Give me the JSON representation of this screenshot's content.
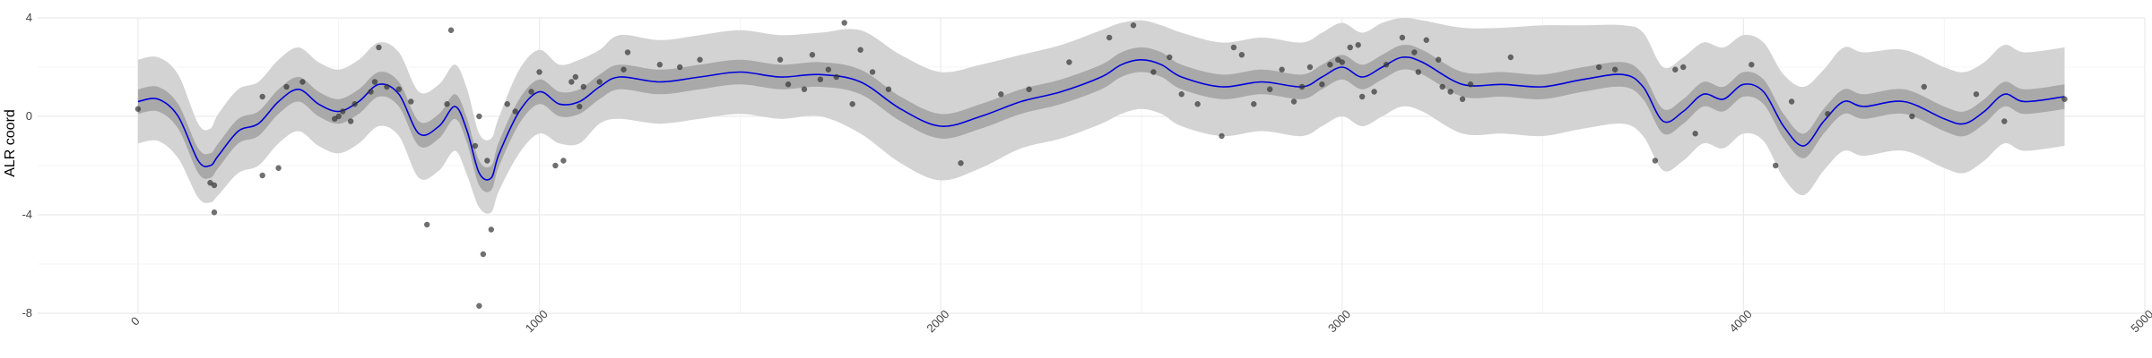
{
  "chart_data": {
    "type": "line",
    "title": "",
    "xlabel": "",
    "ylabel": "ALR coord",
    "xlim": [
      -250,
      5000
    ],
    "ylim": [
      -8,
      4
    ],
    "x_ticks": [
      0,
      1000,
      2000,
      3000,
      4000,
      5000
    ],
    "y_ticks": [
      -8,
      -4,
      0,
      4
    ],
    "grid": true,
    "legend": "none",
    "colors": {
      "mean_line": "#0000dd",
      "inner_band": "#a9a9a9",
      "outer_band": "#d3d3d3",
      "points": "#333333",
      "grid": "#ebebeb"
    },
    "curve": {
      "x": [
        0,
        50,
        100,
        150,
        180,
        200,
        250,
        300,
        350,
        400,
        450,
        500,
        550,
        600,
        650,
        700,
        750,
        790,
        820,
        850,
        880,
        900,
        950,
        1000,
        1050,
        1100,
        1150,
        1200,
        1300,
        1400,
        1500,
        1600,
        1700,
        1800,
        1900,
        2000,
        2100,
        2200,
        2300,
        2400,
        2450,
        2500,
        2550,
        2600,
        2700,
        2800,
        2900,
        2950,
        3000,
        3050,
        3100,
        3150,
        3200,
        3300,
        3400,
        3500,
        3600,
        3700,
        3750,
        3800,
        3850,
        3900,
        3950,
        4000,
        4050,
        4100,
        4150,
        4200,
        4250,
        4300,
        4400,
        4500,
        4550,
        4600,
        4650,
        4700,
        4800
      ],
      "mean": [
        0.6,
        0.7,
        0.0,
        -1.8,
        -2.0,
        -1.6,
        -0.6,
        -0.3,
        0.6,
        1.1,
        0.5,
        0.2,
        0.6,
        1.3,
        0.9,
        -0.7,
        -0.4,
        0.4,
        -0.6,
        -2.3,
        -2.5,
        -1.5,
        0.2,
        1.0,
        0.5,
        0.6,
        1.2,
        1.6,
        1.4,
        1.6,
        1.8,
        1.6,
        1.7,
        1.4,
        0.3,
        -0.4,
        0.0,
        0.6,
        1.0,
        1.6,
        2.1,
        2.3,
        2.1,
        1.6,
        1.2,
        1.4,
        1.2,
        1.6,
        2.0,
        1.6,
        2.0,
        2.4,
        2.2,
        1.3,
        1.3,
        1.2,
        1.5,
        1.7,
        1.2,
        -0.2,
        0.2,
        0.9,
        0.7,
        1.3,
        1.0,
        -0.4,
        -1.2,
        -0.2,
        0.6,
        0.4,
        0.6,
        -0.1,
        -0.3,
        0.2,
        0.9,
        0.6,
        0.8
      ],
      "lower_inner": [
        0.1,
        0.2,
        -0.5,
        -2.3,
        -2.5,
        -2.1,
        -1.1,
        -0.8,
        0.1,
        0.6,
        0.0,
        -0.3,
        0.1,
        0.8,
        0.4,
        -1.2,
        -0.9,
        -0.1,
        -1.1,
        -2.8,
        -3.0,
        -2.0,
        -0.3,
        0.5,
        0.0,
        0.1,
        0.7,
        1.1,
        0.9,
        1.1,
        1.3,
        1.1,
        1.2,
        0.9,
        -0.2,
        -0.9,
        -0.5,
        0.1,
        0.5,
        1.1,
        1.6,
        1.8,
        1.6,
        1.1,
        0.7,
        0.9,
        0.7,
        1.1,
        1.5,
        1.1,
        1.5,
        1.9,
        1.7,
        0.8,
        0.8,
        0.7,
        1.0,
        1.2,
        0.7,
        -0.7,
        -0.3,
        0.4,
        0.2,
        0.8,
        0.5,
        -0.9,
        -1.7,
        -0.7,
        0.1,
        -0.1,
        0.1,
        -0.6,
        -0.8,
        -0.3,
        0.4,
        0.1,
        0.3
      ],
      "upper_inner": [
        1.1,
        1.2,
        0.5,
        -1.3,
        -1.5,
        -1.1,
        -0.1,
        0.2,
        1.1,
        1.6,
        1.0,
        0.7,
        1.1,
        1.8,
        1.4,
        -0.2,
        0.1,
        0.9,
        -0.1,
        -1.8,
        -2.0,
        -1.0,
        0.7,
        1.5,
        1.0,
        1.1,
        1.7,
        2.1,
        1.9,
        2.1,
        2.3,
        2.1,
        2.2,
        1.9,
        0.8,
        0.1,
        0.5,
        1.1,
        1.5,
        2.1,
        2.6,
        2.8,
        2.6,
        2.1,
        1.7,
        1.9,
        1.7,
        2.1,
        2.5,
        2.1,
        2.5,
        2.9,
        2.7,
        1.8,
        1.8,
        1.7,
        2.0,
        2.2,
        1.7,
        0.3,
        0.7,
        1.4,
        1.2,
        1.8,
        1.5,
        0.1,
        -0.7,
        0.3,
        1.1,
        0.9,
        1.1,
        0.4,
        0.2,
        0.7,
        1.4,
        1.1,
        1.3
      ],
      "lower_outer": [
        -1.1,
        -1.0,
        -1.7,
        -3.3,
        -3.5,
        -3.2,
        -2.3,
        -2.0,
        -1.1,
        -0.6,
        -1.2,
        -1.5,
        -1.1,
        -0.4,
        -0.8,
        -2.5,
        -2.2,
        -1.4,
        -2.4,
        -3.7,
        -3.9,
        -3.0,
        -1.5,
        -0.7,
        -1.1,
        -1.1,
        -0.3,
        -0.1,
        -0.3,
        -0.1,
        0.1,
        -0.1,
        0.0,
        -0.7,
        -1.9,
        -2.6,
        -2.1,
        -1.3,
        -0.9,
        -0.3,
        0.1,
        0.3,
        0.1,
        -0.4,
        -0.8,
        -0.6,
        -0.8,
        -0.4,
        0.0,
        -0.4,
        0.0,
        0.4,
        0.2,
        -0.7,
        -0.7,
        -0.8,
        -0.5,
        -0.3,
        -0.8,
        -2.2,
        -1.8,
        -1.1,
        -1.3,
        -0.7,
        -1.0,
        -2.5,
        -3.2,
        -2.2,
        -1.4,
        -1.6,
        -1.4,
        -2.1,
        -2.3,
        -1.8,
        -1.1,
        -1.4,
        -1.2
      ],
      "upper_outer": [
        2.3,
        2.4,
        1.7,
        -0.3,
        -0.5,
        0.1,
        1.1,
        1.4,
        2.3,
        2.8,
        2.2,
        1.9,
        2.3,
        3.0,
        2.6,
        1.0,
        1.3,
        2.1,
        1.1,
        -0.7,
        -0.9,
        0.0,
        1.9,
        2.7,
        2.1,
        2.3,
        2.7,
        3.3,
        3.1,
        3.3,
        3.5,
        3.3,
        3.4,
        3.5,
        2.5,
        1.8,
        2.1,
        2.5,
        2.9,
        3.5,
        3.8,
        3.9,
        3.7,
        3.4,
        3.0,
        3.2,
        3.0,
        3.4,
        3.8,
        3.4,
        3.8,
        4.0,
        3.9,
        3.6,
        3.6,
        3.7,
        3.7,
        3.7,
        3.4,
        2.0,
        2.4,
        3.0,
        2.8,
        3.3,
        3.0,
        1.7,
        1.2,
        1.9,
        2.8,
        2.6,
        2.7,
        2.0,
        1.8,
        2.2,
        2.9,
        2.6,
        2.8
      ]
    },
    "points": [
      [
        0,
        0.3
      ],
      [
        180,
        -2.7
      ],
      [
        190,
        -2.8
      ],
      [
        190,
        -3.9
      ],
      [
        310,
        -2.4
      ],
      [
        310,
        0.8
      ],
      [
        350,
        -2.1
      ],
      [
        370,
        1.2
      ],
      [
        410,
        1.4
      ],
      [
        490,
        -0.1
      ],
      [
        500,
        0.0
      ],
      [
        510,
        0.2
      ],
      [
        530,
        -0.2
      ],
      [
        540,
        0.5
      ],
      [
        580,
        1.0
      ],
      [
        590,
        1.4
      ],
      [
        600,
        2.8
      ],
      [
        620,
        1.2
      ],
      [
        650,
        1.1
      ],
      [
        680,
        0.6
      ],
      [
        720,
        -4.4
      ],
      [
        770,
        0.5
      ],
      [
        780,
        3.5
      ],
      [
        840,
        -1.2
      ],
      [
        850,
        0.0
      ],
      [
        850,
        -7.7
      ],
      [
        860,
        -5.6
      ],
      [
        870,
        -1.8
      ],
      [
        880,
        -4.6
      ],
      [
        920,
        0.5
      ],
      [
        940,
        0.2
      ],
      [
        980,
        1.0
      ],
      [
        1000,
        1.8
      ],
      [
        1040,
        -2.0
      ],
      [
        1060,
        -1.8
      ],
      [
        1080,
        1.4
      ],
      [
        1090,
        1.6
      ],
      [
        1100,
        0.4
      ],
      [
        1110,
        1.2
      ],
      [
        1150,
        1.4
      ],
      [
        1210,
        1.9
      ],
      [
        1220,
        2.6
      ],
      [
        1300,
        2.1
      ],
      [
        1350,
        2.0
      ],
      [
        1400,
        2.3
      ],
      [
        1600,
        2.3
      ],
      [
        1620,
        1.3
      ],
      [
        1660,
        1.1
      ],
      [
        1680,
        2.5
      ],
      [
        1700,
        1.5
      ],
      [
        1720,
        1.9
      ],
      [
        1740,
        1.6
      ],
      [
        1760,
        3.8
      ],
      [
        1780,
        0.5
      ],
      [
        1800,
        2.7
      ],
      [
        1830,
        1.8
      ],
      [
        1870,
        1.1
      ],
      [
        2050,
        -1.9
      ],
      [
        2150,
        0.9
      ],
      [
        2220,
        1.1
      ],
      [
        2320,
        2.2
      ],
      [
        2420,
        3.2
      ],
      [
        2480,
        3.7
      ],
      [
        2530,
        1.8
      ],
      [
        2570,
        2.4
      ],
      [
        2600,
        0.9
      ],
      [
        2640,
        0.5
      ],
      [
        2700,
        -0.8
      ],
      [
        2730,
        2.8
      ],
      [
        2750,
        2.5
      ],
      [
        2780,
        0.5
      ],
      [
        2820,
        1.1
      ],
      [
        2850,
        1.9
      ],
      [
        2880,
        0.6
      ],
      [
        2900,
        1.2
      ],
      [
        2920,
        2.0
      ],
      [
        2950,
        1.3
      ],
      [
        2970,
        2.1
      ],
      [
        2990,
        2.3
      ],
      [
        3000,
        2.2
      ],
      [
        3020,
        2.8
      ],
      [
        3040,
        2.9
      ],
      [
        3050,
        0.8
      ],
      [
        3080,
        1.0
      ],
      [
        3110,
        2.1
      ],
      [
        3150,
        3.2
      ],
      [
        3180,
        2.6
      ],
      [
        3190,
        1.8
      ],
      [
        3210,
        3.1
      ],
      [
        3240,
        2.3
      ],
      [
        3250,
        1.2
      ],
      [
        3270,
        1.0
      ],
      [
        3300,
        0.7
      ],
      [
        3320,
        1.3
      ],
      [
        3420,
        2.4
      ],
      [
        3640,
        2.0
      ],
      [
        3680,
        1.9
      ],
      [
        3780,
        -1.8
      ],
      [
        3830,
        1.9
      ],
      [
        3850,
        2.0
      ],
      [
        3880,
        -0.7
      ],
      [
        4020,
        2.1
      ],
      [
        4080,
        -2.0
      ],
      [
        4120,
        0.6
      ],
      [
        4210,
        0.1
      ],
      [
        4420,
        0.0
      ],
      [
        4450,
        1.2
      ],
      [
        4580,
        0.9
      ],
      [
        4650,
        -0.2
      ],
      [
        4800,
        0.7
      ]
    ]
  }
}
